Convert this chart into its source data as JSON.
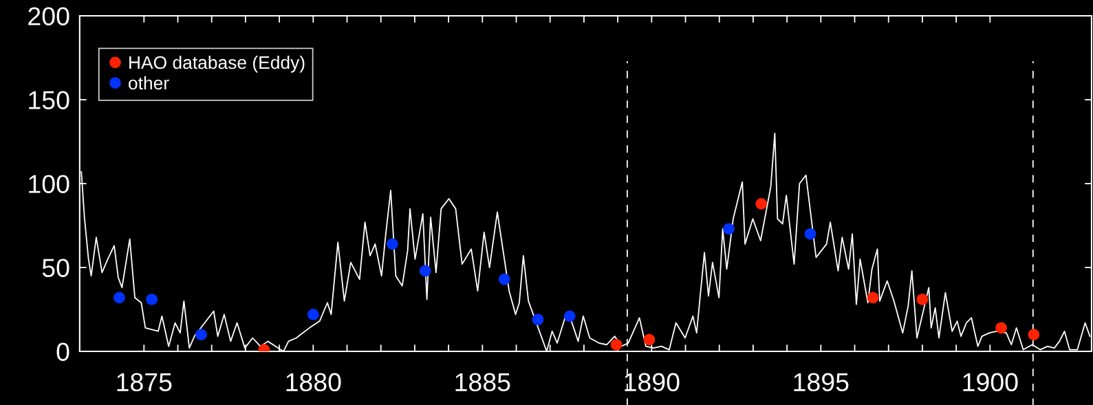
{
  "chart_data": {
    "type": "line",
    "xlim": [
      1873.1,
      1903.0
    ],
    "ylim": [
      0,
      200
    ],
    "xticks": [
      1875,
      1880,
      1885,
      1890,
      1895,
      1900
    ],
    "yticks": [
      0,
      50,
      100,
      150,
      200
    ],
    "grid": false,
    "legend": "top left",
    "series": [
      {
        "color": "#ffffff",
        "marker": "none",
        "line_style": "solid",
        "x": [
          1873.15,
          1873.24,
          1873.36,
          1873.44,
          1873.59,
          1873.76,
          1873.93,
          1874.12,
          1874.24,
          1874.35,
          1874.58,
          1874.73,
          1874.92,
          1875.04,
          1875.42,
          1875.53,
          1875.73,
          1875.92,
          1876.07,
          1876.18,
          1876.34,
          1876.49,
          1877.06,
          1877.18,
          1877.37,
          1877.56,
          1877.75,
          1877.98,
          1878.21,
          1878.44,
          1878.66,
          1878.89,
          1879.12,
          1879.27,
          1879.5,
          1879.69,
          1879.89,
          1880.19,
          1880.42,
          1880.53,
          1880.73,
          1880.92,
          1881.11,
          1881.37,
          1881.53,
          1881.68,
          1881.83,
          1882.02,
          1882.14,
          1882.29,
          1882.44,
          1882.63,
          1882.79,
          1882.86,
          1883.01,
          1883.24,
          1883.36,
          1883.47,
          1883.63,
          1883.78,
          1884.01,
          1884.21,
          1884.4,
          1884.67,
          1884.86,
          1885.05,
          1885.21,
          1885.44,
          1885.79,
          1885.98,
          1886.09,
          1886.21,
          1886.36,
          1886.9,
          1887.06,
          1887.21,
          1887.44,
          1887.63,
          1887.83,
          1887.98,
          1888.17,
          1888.44,
          1888.67,
          1888.91,
          1889.1,
          1889.31,
          1889.64,
          1889.83,
          1890.06,
          1890.29,
          1890.52,
          1890.72,
          1890.99,
          1891.22,
          1891.33,
          1891.56,
          1891.68,
          1891.8,
          1891.99,
          1892.1,
          1892.22,
          1892.41,
          1892.68,
          1892.76,
          1892.99,
          1893.22,
          1893.52,
          1893.64,
          1893.72,
          1893.87,
          1893.98,
          1894.21,
          1894.37,
          1894.56,
          1894.86,
          1895.17,
          1895.28,
          1895.51,
          1895.63,
          1895.82,
          1895.93,
          1896.05,
          1896.16,
          1896.39,
          1896.51,
          1896.67,
          1896.74,
          1896.96,
          1897.16,
          1897.42,
          1897.58,
          1897.69,
          1897.84,
          1898.19,
          1898.26,
          1898.38,
          1898.49,
          1898.68,
          1898.88,
          1899.03,
          1899.14,
          1899.3,
          1899.45,
          1899.64,
          1899.76,
          1899.98,
          1900.21,
          1900.48,
          1900.63,
          1900.78,
          1900.98,
          1901.25,
          1901.48,
          1901.7,
          1901.9,
          1902.05,
          1902.2,
          1902.35,
          1902.58,
          1902.81,
          1902.95
        ],
        "values": [
          107,
          80,
          55,
          45,
          68,
          47,
          55,
          63,
          44,
          38,
          67,
          32,
          29,
          14,
          12,
          21,
          3,
          17,
          11,
          30,
          2,
          9,
          24,
          9,
          22,
          6,
          17,
          2,
          8,
          3,
          6,
          3,
          0,
          6,
          8,
          11,
          14,
          18,
          29,
          22,
          65,
          30,
          53,
          43,
          77,
          57,
          64,
          45,
          69,
          96,
          45,
          39,
          60,
          85,
          55,
          82,
          31,
          80,
          47,
          85,
          91,
          85,
          52,
          61,
          36,
          71,
          50,
          83,
          36,
          22,
          29,
          57,
          30,
          0,
          12,
          5,
          20,
          18,
          6,
          21,
          8,
          5,
          4,
          9,
          3,
          5,
          20,
          3,
          2,
          3,
          1,
          17,
          8,
          21,
          11,
          59,
          33,
          53,
          32,
          73,
          49,
          79,
          101,
          64,
          79,
          66,
          98,
          130,
          79,
          76,
          93,
          52,
          100,
          105,
          56,
          64,
          77,
          48,
          68,
          49,
          70,
          28,
          55,
          29,
          49,
          61,
          30,
          42,
          30,
          11,
          27,
          48,
          8,
          38,
          14,
          26,
          8,
          35,
          12,
          18,
          9,
          17,
          20,
          3,
          9,
          11,
          12,
          11,
          4,
          14,
          1,
          4,
          1,
          3,
          2,
          6,
          12,
          1,
          1,
          17,
          9
        ]
      },
      {
        "type": "scatter",
        "name": "HAO database (Eddy)",
        "color": "#ff2200",
        "marker": "circle",
        "x": [
          1878.55,
          1888.96,
          1889.93,
          1893.24,
          1896.54,
          1898.0,
          1900.33,
          1901.29
        ],
        "values": [
          1,
          4,
          7,
          88,
          32,
          31,
          14,
          10
        ]
      },
      {
        "type": "scatter",
        "name": "other",
        "color": "#0033ff",
        "marker": "circle",
        "x": [
          1874.27,
          1875.23,
          1876.69,
          1880.0,
          1882.34,
          1883.31,
          1885.65,
          1886.64,
          1887.58,
          1892.28,
          1894.69
        ],
        "values": [
          32,
          31,
          10,
          22,
          64,
          48,
          43,
          19,
          21,
          73,
          70
        ]
      }
    ],
    "ref_lines": [
      {
        "axis": "x",
        "value": 1889.28,
        "color": "#ffffff",
        "line_style": "dashed"
      },
      {
        "axis": "x",
        "value": 1901.27,
        "color": "#ffffff",
        "line_style": "dashed"
      }
    ]
  }
}
